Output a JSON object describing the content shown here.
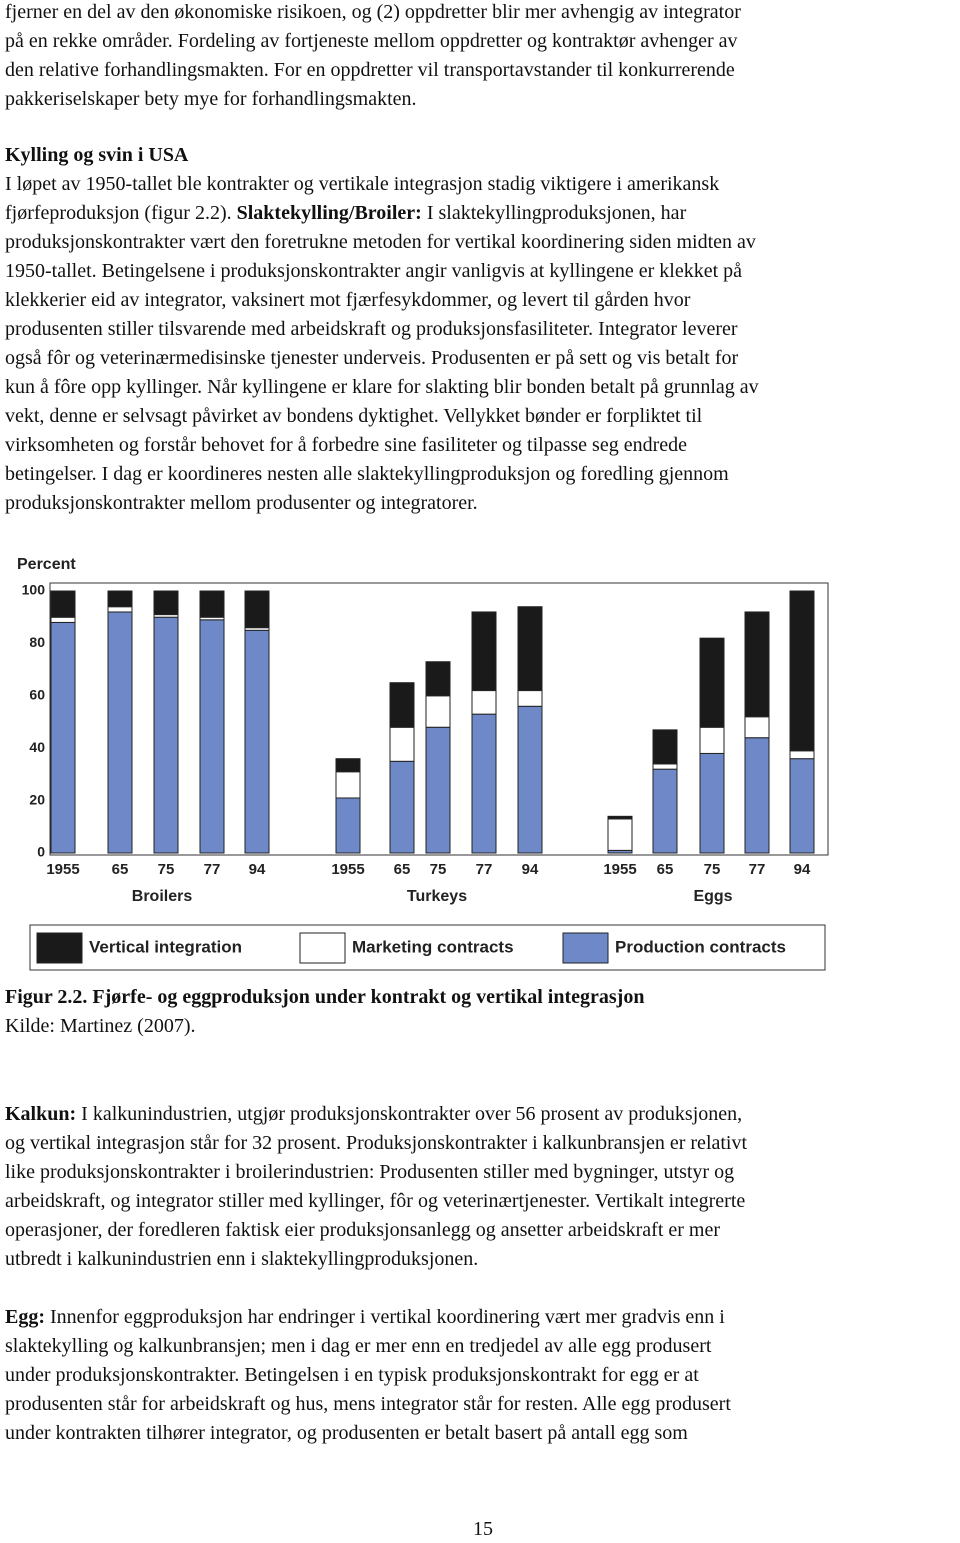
{
  "intro": {
    "lines": [
      "fjerner en del av den økonomiske risikoen, og (2) oppdretter blir mer avhengig av integrator",
      "på en rekke områder. Fordeling av fortjeneste mellom oppdretter og kontraktør avhenger av",
      "den relative forhandlingsmakten. For en oppdretter vil transportavstander til konkurrerende",
      "pakkeriselskaper bety mye for forhandlingsmakten."
    ]
  },
  "section": {
    "heading": "Kylling og svin i USA",
    "lines": [
      "I løpet av 1950-tallet ble kontrakter og vertikale integrasjon stadig viktigere i amerikansk",
      {
        "before": "fjørfeproduksjon (figur 2.2).",
        "bold": "Slaktekylling/Broiler:",
        "after": "I slaktekyllingproduksjonen, har"
      },
      "produksjonskontrakter vært den foretrukne metoden for vertikal koordinering siden midten av",
      "1950-tallet. Betingelsene i produksjonskontrakter angir vanligvis at kyllingene er klekket på",
      "klekkerier eid av integrator, vaksinert mot fjærfesykdommer, og levert til gården hvor",
      "produsenten stiller tilsvarende med arbeidskraft og produksjonsfasiliteter. Integrator leverer",
      "også fôr og veterinærmedisinske tjenester underveis. Produsenten er på sett og vis betalt for",
      "kun å fôre opp kyllinger. Når kyllingene er klare for slakting blir bonden betalt på grunnlag av",
      "vekt, denne er selvsagt påvirket av bondens dyktighet. Vellykket bønder er forpliktet til",
      "virksomheten og forstår behovet for å forbedre sine fasiliteter og tilpasse seg endrede",
      "betingelser. I dag er koordineres nesten alle slaktekyllingproduksjon og foredling gjennom",
      "produksjonskontrakter mellom produsenter og integratorer."
    ]
  },
  "chart_data": {
    "type": "stacked_bar",
    "ylabel": "Percent",
    "ylim": [
      0,
      100
    ],
    "yticks": [
      0,
      20,
      40,
      60,
      80,
      100
    ],
    "groups": [
      {
        "name": "Broilers",
        "categories": [
          "1955",
          "65",
          "75",
          "77",
          "94"
        ]
      },
      {
        "name": "Turkeys",
        "categories": [
          "1955",
          "65",
          "75",
          "77",
          "94"
        ]
      },
      {
        "name": "Eggs",
        "categories": [
          "1955",
          "65",
          "75",
          "77",
          "94"
        ]
      }
    ],
    "series": [
      {
        "name": "Vertical integration",
        "color": "#1a1a1a",
        "values": [
          10,
          6,
          9,
          10,
          14,
          5,
          17,
          13,
          30,
          32,
          1,
          13,
          34,
          40,
          61
        ]
      },
      {
        "name": "Marketing contracts",
        "color": "#ffffff",
        "values": [
          2,
          2,
          1,
          1,
          1,
          10,
          13,
          12,
          9,
          6,
          12,
          2,
          10,
          8,
          3
        ]
      },
      {
        "name": "Production contracts",
        "color": "#6f89c8",
        "values": [
          88,
          92,
          90,
          89,
          85,
          21,
          35,
          48,
          53,
          56,
          1,
          32,
          38,
          44,
          36
        ]
      }
    ]
  },
  "caption": {
    "title": "Figur 2.2. Fjørfe- og eggproduksjon under kontrakt og vertikal integrasjon",
    "source": "Kilde: Martinez (2007)."
  },
  "kalkun": {
    "lead": "Kalkun:",
    "lines": [
      "I kalkunindustrien, utgjør produksjonskontrakter  over 56 prosent av produksjonen,",
      "og vertikal integrasjon står for 32 prosent. Produksjonskontrakter i kalkunbransjen er relativt",
      "like produksjonskontrakter i broilerindustrien: Produsenten stiller med bygninger, utstyr og",
      "arbeidskraft, og integrator stiller med kyllinger, fôr og veterinærtjenester. Vertikalt integrerte",
      "operasjoner, der foredleren faktisk eier produksjonsanlegg og ansetter arbeidskraft er mer",
      "utbredt i kalkunindustrien enn i slaktekyllingproduksjonen."
    ]
  },
  "egg": {
    "lead": "Egg:",
    "lines": [
      "Innenfor eggproduksjon har endringer i vertikal koordinering vært mer gradvis enn i",
      "slaktekylling og kalkunbransjen; men i dag er mer enn en tredjedel av alle egg produsert",
      "under produksjonskontrakter. Betingelsen i en typisk produksjonskontrakt for egg er at",
      "produsenten står for arbeidskraft og hus, mens integrator står for resten. Alle egg produsert",
      "under kontrakten tilhører integrator, og produsenten er betalt basert på antall egg som"
    ]
  },
  "page_number": "15"
}
